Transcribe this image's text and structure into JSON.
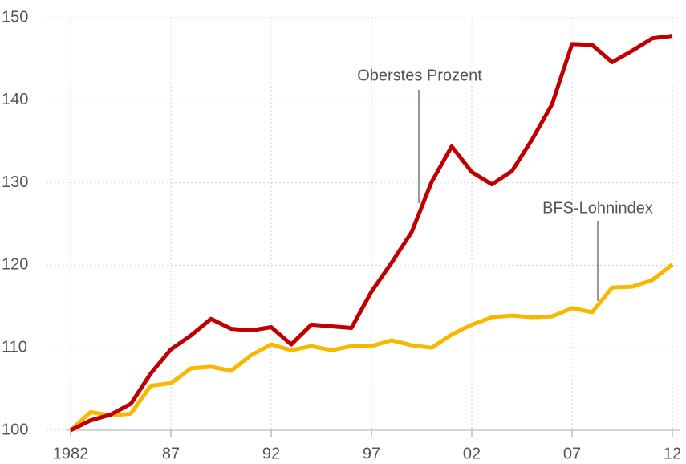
{
  "chart_data": {
    "type": "line",
    "x": [
      1982,
      1983,
      1984,
      1985,
      1986,
      1987,
      1988,
      1989,
      1990,
      1991,
      1992,
      1993,
      1994,
      1995,
      1996,
      1997,
      1998,
      1999,
      2000,
      2001,
      2002,
      2003,
      2004,
      2005,
      2006,
      2007,
      2008,
      2009,
      2010,
      2011,
      2012
    ],
    "series": [
      {
        "name": "Oberstes Prozent",
        "color": "#c00000",
        "values": [
          100,
          101.2,
          101.9,
          103.2,
          106.9,
          109.8,
          111.5,
          113.5,
          112.3,
          112.1,
          112.5,
          110.4,
          112.8,
          112.6,
          112.4,
          116.8,
          120.3,
          124,
          130.1,
          134.4,
          131.3,
          129.8,
          131.4,
          135.2,
          139.5,
          146.8,
          146.7,
          144.6,
          146,
          147.5,
          147.8
        ]
      },
      {
        "name": "BFS-Lohnindex",
        "color": "#f9b800",
        "values": [
          100,
          102.2,
          101.8,
          102,
          105.4,
          105.7,
          107.5,
          107.7,
          107.2,
          109.1,
          110.4,
          109.7,
          110.2,
          109.7,
          110.2,
          110.2,
          110.9,
          110.3,
          110,
          111.6,
          112.8,
          113.7,
          113.9,
          113.7,
          113.8,
          114.8,
          114.3,
          117.3,
          117.4,
          118.2,
          120.1
        ]
      }
    ],
    "xlim": [
      1982,
      2012
    ],
    "xticks": [
      1982,
      {
        "value": 1987,
        "label": "87"
      },
      {
        "value": 1992,
        "label": "92"
      },
      {
        "value": 1997,
        "label": "97"
      },
      {
        "value": 2002,
        "label": "02"
      },
      {
        "value": 2007,
        "label": "07"
      },
      {
        "value": 2012,
        "label": "12"
      }
    ],
    "ylim": [
      100,
      150
    ],
    "yticks": [
      100,
      110,
      120,
      130,
      140,
      150
    ],
    "grid": true
  }
}
